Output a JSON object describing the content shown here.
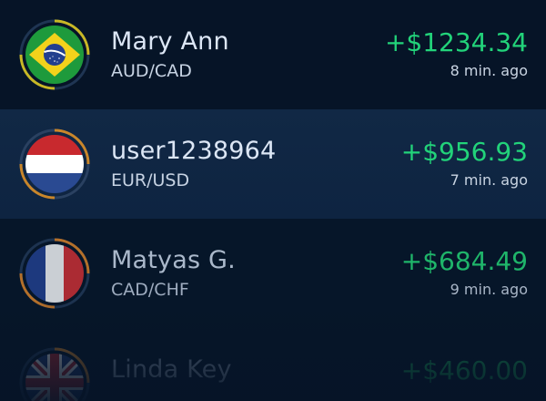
{
  "trades": [
    {
      "name": "Mary Ann",
      "pair": "AUD/CAD",
      "amount": "+$1234.34",
      "time": "8 min. ago",
      "flag_icon": "brazil-flag-icon",
      "ring_color": "#c8b825"
    },
    {
      "name": "user1238964",
      "pair": "EUR/USD",
      "amount": "+$956.93",
      "time": "7 min. ago",
      "flag_icon": "netherlands-flag-icon",
      "ring_color": "#c9862a"
    },
    {
      "name": "Matyas G.",
      "pair": "CAD/CHF",
      "amount": "+$684.49",
      "time": "9 min. ago",
      "flag_icon": "france-flag-icon",
      "ring_color": "#b4702a"
    },
    {
      "name": "Linda Key",
      "pair": "",
      "amount": "+$460.00",
      "time": "",
      "flag_icon": "united-kingdom-flag-icon",
      "ring_color": "#a26a2a"
    }
  ],
  "colors": {
    "background": "#061427",
    "highlight_row": "#112845",
    "profit_green": "#22d37a"
  }
}
